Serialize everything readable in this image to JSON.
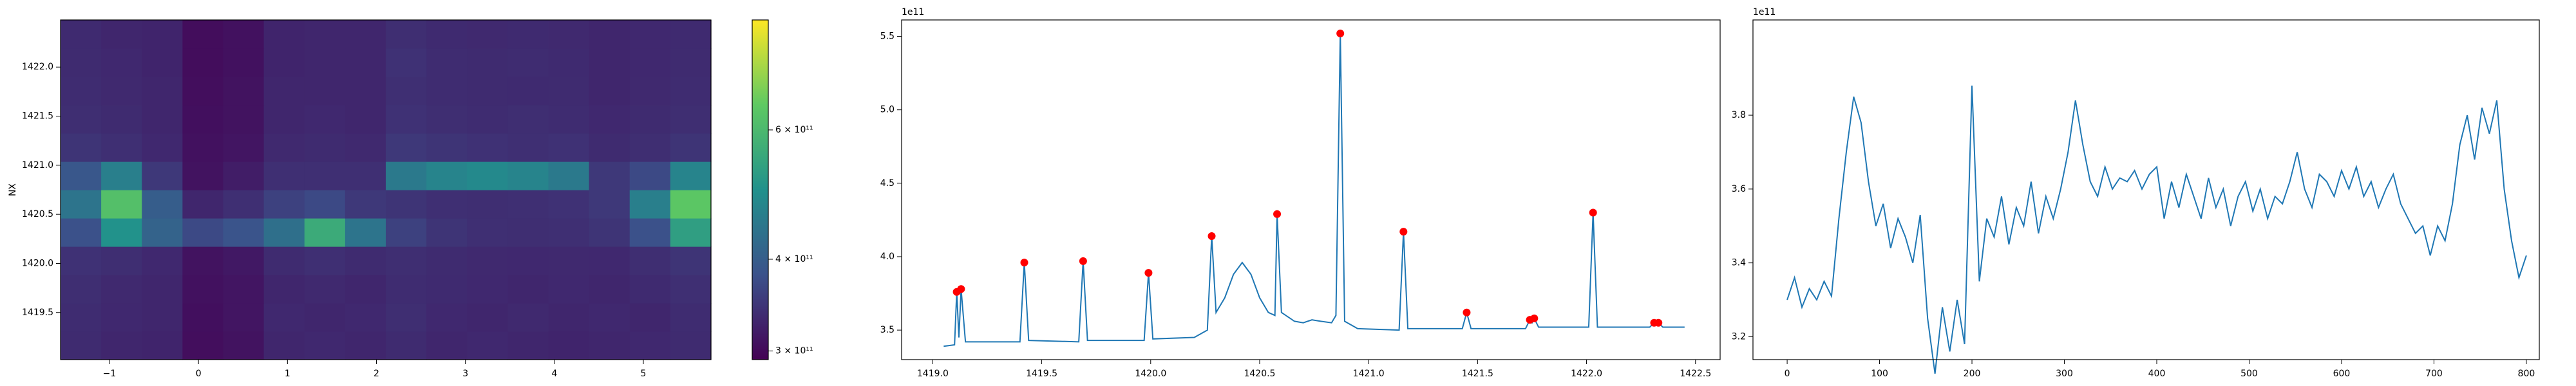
{
  "chart_data": [
    {
      "type": "heatmap",
      "ylabel": "NX",
      "colormap": "viridis",
      "xlim": [
        -1.55,
        5.76
      ],
      "xticks": [
        {
          "value": -1,
          "label": "−1"
        },
        0,
        1,
        2,
        3,
        4,
        5
      ],
      "ylim": [
        1419.02,
        1422.48
      ],
      "yticks": [
        {
          "value": 1419.5,
          "label": "1419.5"
        },
        {
          "value": 1420.0,
          "label": "1420.0"
        },
        {
          "value": 1420.5,
          "label": "1420.5"
        },
        {
          "value": 1421.0,
          "label": "1421.0"
        },
        {
          "value": 1421.5,
          "label": "1421.5"
        },
        {
          "value": 1422.0,
          "label": "1422.0"
        }
      ],
      "z": [
        [
          335000000000.0,
          330000000000.0,
          328000000000.0,
          305000000000.0,
          310000000000.0,
          330000000000.0,
          332000000000.0,
          330000000000.0,
          335000000000.0,
          330000000000.0,
          332000000000.0,
          330000000000.0,
          328000000000.0,
          330000000000.0,
          332000000000.0,
          335000000000.0
        ],
        [
          336000000000.0,
          332000000000.0,
          330000000000.0,
          306000000000.0,
          312000000000.0,
          332000000000.0,
          330000000000.0,
          332000000000.0,
          338000000000.0,
          332000000000.0,
          330000000000.0,
          333000000000.0,
          330000000000.0,
          332000000000.0,
          330000000000.0,
          336000000000.0
        ],
        [
          338000000000.0,
          333000000000.0,
          330000000000.0,
          308000000000.0,
          312000000000.0,
          330000000000.0,
          333000000000.0,
          330000000000.0,
          336000000000.0,
          334000000000.0,
          332000000000.0,
          330000000000.0,
          332000000000.0,
          330000000000.0,
          334000000000.0,
          340000000000.0
        ],
        [
          342000000000.0,
          338000000000.0,
          332000000000.0,
          310000000000.0,
          315000000000.0,
          335000000000.0,
          340000000000.0,
          335000000000.0,
          338000000000.0,
          335000000000.0,
          333000000000.0,
          332000000000.0,
          333000000000.0,
          332000000000.0,
          338000000000.0,
          345000000000.0
        ],
        [
          380000000000.0,
          500000000000.0,
          410000000000.0,
          370000000000.0,
          385000000000.0,
          430000000000.0,
          560000000000.0,
          440000000000.0,
          360000000000.0,
          345000000000.0,
          340000000000.0,
          338000000000.0,
          340000000000.0,
          345000000000.0,
          380000000000.0,
          530000000000.0
        ],
        [
          440000000000.0,
          620000000000.0,
          400000000000.0,
          330000000000.0,
          340000000000.0,
          360000000000.0,
          370000000000.0,
          350000000000.0,
          345000000000.0,
          340000000000.0,
          338000000000.0,
          340000000000.0,
          342000000000.0,
          350000000000.0,
          460000000000.0,
          640000000000.0
        ],
        [
          390000000000.0,
          460000000000.0,
          350000000000.0,
          310000000000.0,
          320000000000.0,
          340000000000.0,
          340000000000.0,
          340000000000.0,
          450000000000.0,
          470000000000.0,
          480000000000.0,
          470000000000.0,
          450000000000.0,
          350000000000.0,
          370000000000.0,
          470000000000.0
        ],
        [
          345000000000.0,
          340000000000.0,
          332000000000.0,
          308000000000.0,
          312000000000.0,
          333000000000.0,
          335000000000.0,
          333000000000.0,
          350000000000.0,
          345000000000.0,
          342000000000.0,
          340000000000.0,
          342000000000.0,
          335000000000.0,
          338000000000.0,
          345000000000.0
        ],
        [
          338000000000.0,
          335000000000.0,
          330000000000.0,
          306000000000.0,
          310000000000.0,
          330000000000.0,
          332000000000.0,
          330000000000.0,
          342000000000.0,
          338000000000.0,
          336000000000.0,
          338000000000.0,
          336000000000.0,
          332000000000.0,
          335000000000.0,
          338000000000.0
        ],
        [
          336000000000.0,
          333000000000.0,
          330000000000.0,
          305000000000.0,
          310000000000.0,
          330000000000.0,
          330000000000.0,
          330000000000.0,
          340000000000.0,
          336000000000.0,
          335000000000.0,
          334000000000.0,
          335000000000.0,
          330000000000.0,
          333000000000.0,
          336000000000.0
        ],
        [
          335000000000.0,
          332000000000.0,
          328000000000.0,
          304000000000.0,
          308000000000.0,
          328000000000.0,
          330000000000.0,
          330000000000.0,
          342000000000.0,
          336000000000.0,
          335000000000.0,
          336000000000.0,
          334000000000.0,
          330000000000.0,
          332000000000.0,
          335000000000.0
        ],
        [
          334000000000.0,
          330000000000.0,
          328000000000.0,
          304000000000.0,
          308000000000.0,
          328000000000.0,
          330000000000.0,
          330000000000.0,
          338000000000.0,
          334000000000.0,
          333000000000.0,
          334000000000.0,
          333000000000.0,
          330000000000.0,
          332000000000.0,
          334000000000.0
        ]
      ],
      "colorbar": {
        "scale": "log",
        "lim": [
          292000000000.0,
          847000000000.0
        ],
        "ticks": [
          {
            "value": 300000000000.0,
            "label": "3 × 10¹¹"
          },
          {
            "value": 400000000000.0,
            "label": "4 × 10¹¹"
          },
          {
            "value": 600000000000.0,
            "label": "6 × 10¹¹"
          }
        ]
      }
    },
    {
      "type": "line",
      "offset_text": "1e11",
      "xlim": [
        1418.857,
        1422.613
      ],
      "xticks": [
        {
          "value": 1419.0,
          "label": "1419.0"
        },
        1419.5,
        {
          "value": 1420.0,
          "label": "1420.0"
        },
        1420.5,
        {
          "value": 1421.0,
          "label": "1421.0"
        },
        1421.5,
        {
          "value": 1422.0,
          "label": "1422.0"
        },
        1422.5
      ],
      "ylim": [
        3.299,
        5.612
      ],
      "yticks": [
        3.5,
        {
          "value": 4.0,
          "label": "4.0"
        },
        4.5,
        {
          "value": 5.0,
          "label": "5.0"
        },
        5.5
      ],
      "series": [
        {
          "mode": "line",
          "color": "#1f77b4",
          "x": [
            1419.05,
            1419.1,
            1419.11,
            1419.12,
            1419.13,
            1419.15,
            1419.4,
            1419.42,
            1419.44,
            1419.67,
            1419.69,
            1419.71,
            1419.97,
            1419.99,
            1420.01,
            1420.2,
            1420.26,
            1420.28,
            1420.3,
            1420.34,
            1420.38,
            1420.42,
            1420.46,
            1420.5,
            1420.54,
            1420.57,
            1420.58,
            1420.6,
            1420.66,
            1420.7,
            1420.74,
            1420.78,
            1420.83,
            1420.85,
            1420.87,
            1420.89,
            1420.95,
            1421.14,
            1421.16,
            1421.18,
            1421.43,
            1421.45,
            1421.47,
            1421.72,
            1421.74,
            1421.75,
            1421.76,
            1421.78,
            1422.01,
            1422.03,
            1422.05,
            1422.29,
            1422.31,
            1422.32,
            1422.33,
            1422.35,
            1422.45
          ],
          "values": [
            3.39,
            3.4,
            3.76,
            3.45,
            3.78,
            3.42,
            3.42,
            3.96,
            3.43,
            3.42,
            3.97,
            3.43,
            3.43,
            3.89,
            3.44,
            3.45,
            3.5,
            4.14,
            3.62,
            3.72,
            3.88,
            3.96,
            3.88,
            3.72,
            3.62,
            3.6,
            4.29,
            3.62,
            3.56,
            3.55,
            3.57,
            3.56,
            3.55,
            3.6,
            5.52,
            3.56,
            3.51,
            3.5,
            4.17,
            3.51,
            3.51,
            3.62,
            3.51,
            3.51,
            3.57,
            3.55,
            3.58,
            3.52,
            3.52,
            4.3,
            3.52,
            3.52,
            3.55,
            3.54,
            3.55,
            3.52,
            3.52
          ]
        },
        {
          "mode": "markers",
          "color": "#ff0000",
          "x": [
            1419.11,
            1419.13,
            1419.42,
            1419.69,
            1419.99,
            1420.28,
            1420.58,
            1420.87,
            1421.16,
            1421.45,
            1421.74,
            1421.76,
            1422.03,
            1422.31,
            1422.33
          ],
          "values": [
            3.76,
            3.78,
            3.96,
            3.97,
            3.89,
            4.14,
            4.29,
            5.52,
            4.17,
            3.62,
            3.57,
            3.58,
            4.3,
            3.55,
            3.55
          ]
        }
      ]
    },
    {
      "type": "line",
      "offset_text": "1e11",
      "xlim": [
        -37,
        814
      ],
      "xticks": [
        0,
        100,
        200,
        300,
        400,
        500,
        600,
        700,
        800
      ],
      "ylim": [
        3.138,
        4.058
      ],
      "yticks": [
        3.2,
        3.4,
        3.6,
        3.8
      ],
      "series": [
        {
          "mode": "line",
          "color": "#1f77b4",
          "x": [
            0,
            8,
            16,
            24,
            32,
            40,
            48,
            56,
            64,
            72,
            80,
            88,
            96,
            104,
            112,
            120,
            128,
            136,
            144,
            152,
            160,
            168,
            176,
            184,
            192,
            200,
            208,
            216,
            224,
            232,
            240,
            248,
            256,
            264,
            272,
            280,
            288,
            296,
            304,
            312,
            320,
            328,
            336,
            344,
            352,
            360,
            368,
            376,
            384,
            392,
            400,
            408,
            416,
            424,
            432,
            440,
            448,
            456,
            464,
            472,
            480,
            488,
            496,
            504,
            512,
            520,
            528,
            536,
            544,
            552,
            560,
            568,
            576,
            584,
            592,
            600,
            608,
            616,
            624,
            632,
            640,
            648,
            656,
            664,
            672,
            680,
            688,
            696,
            704,
            712,
            720,
            728,
            736,
            744,
            752,
            760,
            768,
            776,
            784,
            792,
            800
          ],
          "values": [
            3.3,
            3.36,
            3.28,
            3.33,
            3.3,
            3.35,
            3.31,
            3.52,
            3.7,
            3.85,
            3.78,
            3.62,
            3.5,
            3.56,
            3.44,
            3.52,
            3.47,
            3.4,
            3.53,
            3.25,
            3.1,
            3.28,
            3.16,
            3.3,
            3.18,
            3.88,
            3.35,
            3.52,
            3.47,
            3.58,
            3.45,
            3.55,
            3.5,
            3.62,
            3.48,
            3.58,
            3.52,
            3.6,
            3.7,
            3.84,
            3.72,
            3.62,
            3.58,
            3.66,
            3.6,
            3.63,
            3.62,
            3.65,
            3.6,
            3.64,
            3.66,
            3.52,
            3.62,
            3.55,
            3.64,
            3.58,
            3.52,
            3.63,
            3.55,
            3.6,
            3.5,
            3.58,
            3.62,
            3.54,
            3.6,
            3.52,
            3.58,
            3.56,
            3.62,
            3.7,
            3.6,
            3.55,
            3.64,
            3.62,
            3.58,
            3.65,
            3.6,
            3.66,
            3.58,
            3.62,
            3.55,
            3.6,
            3.64,
            3.56,
            3.52,
            3.48,
            3.5,
            3.42,
            3.5,
            3.46,
            3.56,
            3.72,
            3.8,
            3.68,
            3.82,
            3.75,
            3.84,
            3.6,
            3.46,
            3.36,
            3.42
          ]
        }
      ]
    }
  ]
}
